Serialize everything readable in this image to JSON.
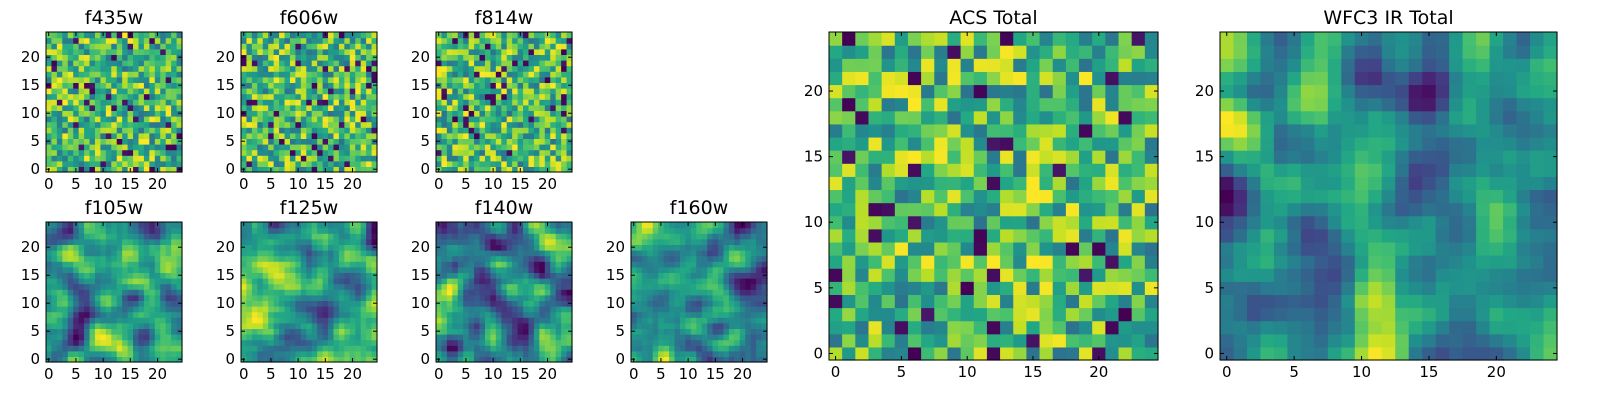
{
  "chart_data": [
    {
      "type": "heatmap",
      "title": "f435w",
      "grid_size": 25,
      "xlim": [
        0,
        24
      ],
      "ylim": [
        0,
        24
      ],
      "x_ticks": [
        0,
        5,
        10,
        15,
        20
      ],
      "y_ticks": [
        0,
        5,
        10,
        15,
        20
      ],
      "colormap": "viridis",
      "pattern": "noise",
      "seed": 11
    },
    {
      "type": "heatmap",
      "title": "f606w",
      "grid_size": 25,
      "xlim": [
        0,
        24
      ],
      "ylim": [
        0,
        24
      ],
      "x_ticks": [
        0,
        5,
        10,
        15,
        20
      ],
      "y_ticks": [
        0,
        5,
        10,
        15,
        20
      ],
      "colormap": "viridis",
      "pattern": "noise",
      "seed": 23
    },
    {
      "type": "heatmap",
      "title": "f814w",
      "grid_size": 25,
      "xlim": [
        0,
        24
      ],
      "ylim": [
        0,
        24
      ],
      "x_ticks": [
        0,
        5,
        10,
        15,
        20
      ],
      "y_ticks": [
        0,
        5,
        10,
        15,
        20
      ],
      "colormap": "viridis",
      "pattern": "noise",
      "seed": 37
    },
    {
      "type": "heatmap",
      "title": "f105w",
      "grid_size": 25,
      "xlim": [
        0,
        24
      ],
      "ylim": [
        0,
        24
      ],
      "x_ticks": [
        0,
        5,
        10,
        15,
        20
      ],
      "y_ticks": [
        0,
        5,
        10,
        15,
        20
      ],
      "colormap": "viridis",
      "pattern": "smooth",
      "seed": 41
    },
    {
      "type": "heatmap",
      "title": "f125w",
      "grid_size": 25,
      "xlim": [
        0,
        24
      ],
      "ylim": [
        0,
        24
      ],
      "x_ticks": [
        0,
        5,
        10,
        15,
        20
      ],
      "y_ticks": [
        0,
        5,
        10,
        15,
        20
      ],
      "colormap": "viridis",
      "pattern": "smooth",
      "seed": 53
    },
    {
      "type": "heatmap",
      "title": "f140w",
      "grid_size": 25,
      "xlim": [
        0,
        24
      ],
      "ylim": [
        0,
        24
      ],
      "x_ticks": [
        0,
        5,
        10,
        15,
        20
      ],
      "y_ticks": [
        0,
        5,
        10,
        15,
        20
      ],
      "colormap": "viridis",
      "pattern": "smooth",
      "seed": 67
    },
    {
      "type": "heatmap",
      "title": "f160w",
      "grid_size": 25,
      "xlim": [
        0,
        24
      ],
      "ylim": [
        0,
        24
      ],
      "x_ticks": [
        0,
        5,
        10,
        15,
        20
      ],
      "y_ticks": [
        0,
        5,
        10,
        15,
        20
      ],
      "colormap": "viridis",
      "pattern": "smooth",
      "seed": 79
    },
    {
      "type": "heatmap",
      "title": "ACS Total",
      "grid_size": 25,
      "xlim": [
        0,
        24
      ],
      "ylim": [
        0,
        24
      ],
      "x_ticks": [
        0,
        5,
        10,
        15,
        20
      ],
      "y_ticks": [
        0,
        5,
        10,
        15,
        20
      ],
      "colormap": "viridis",
      "pattern": "noise",
      "seed": 97
    },
    {
      "type": "heatmap",
      "title": "WFC3 IR Total",
      "grid_size": 25,
      "xlim": [
        0,
        24
      ],
      "ylim": [
        0,
        24
      ],
      "x_ticks": [
        0,
        5,
        10,
        15,
        20
      ],
      "y_ticks": [
        0,
        5,
        10,
        15,
        20
      ],
      "colormap": "viridis",
      "pattern": "smooth",
      "seed": 101
    }
  ]
}
